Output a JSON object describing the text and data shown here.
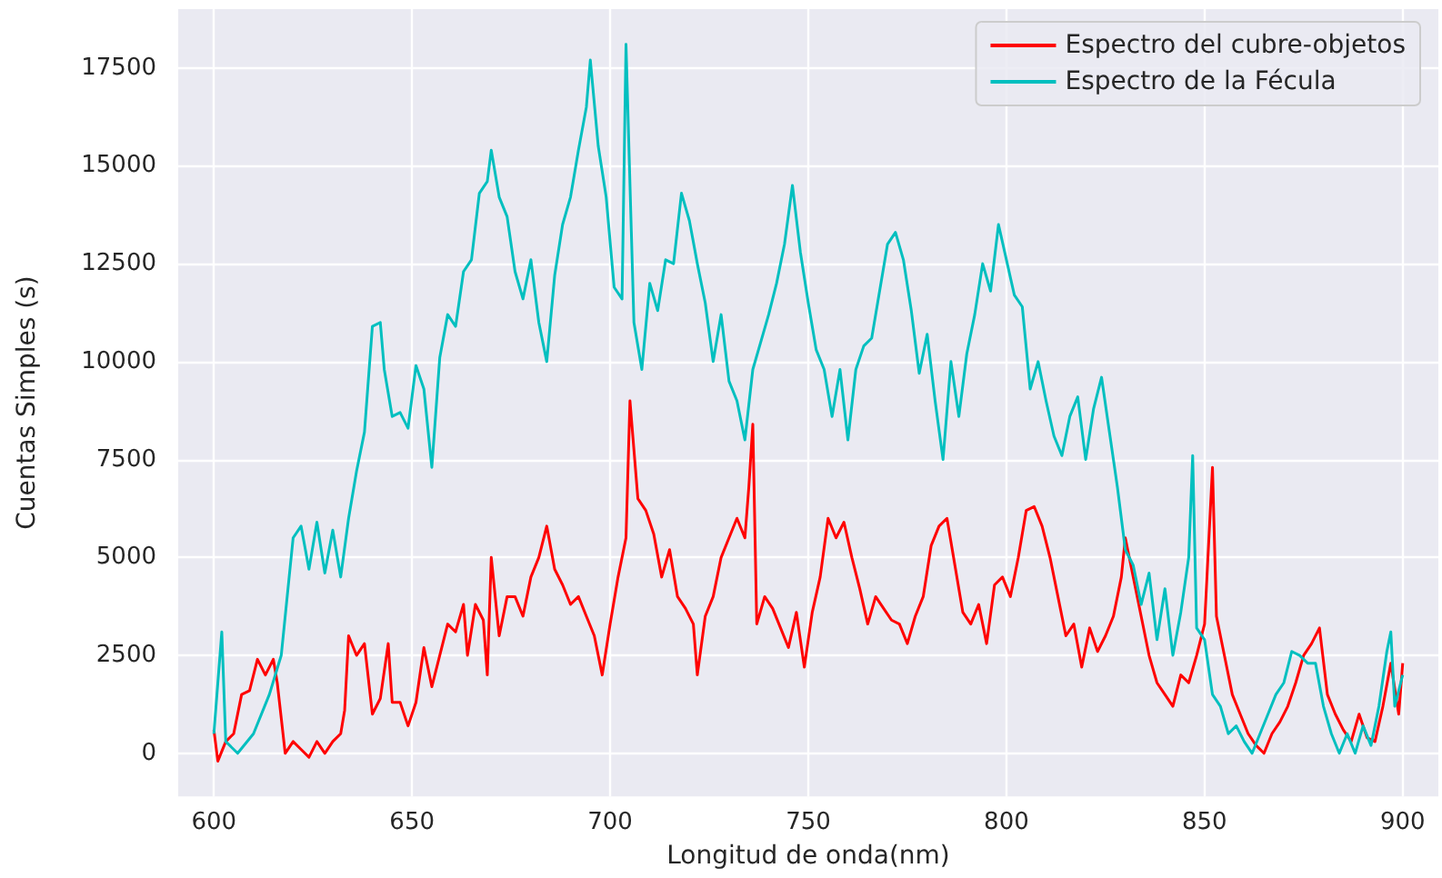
{
  "chart_data": {
    "type": "line",
    "xlabel": "Longitud de onda(nm)",
    "ylabel": "Cuentas Simples (s)",
    "xlim": [
      591,
      909
    ],
    "ylim": [
      -1100,
      19000
    ],
    "xticks": [
      600,
      650,
      700,
      750,
      800,
      850,
      900
    ],
    "yticks": [
      0,
      2500,
      5000,
      7500,
      10000,
      12500,
      15000,
      17500
    ],
    "grid": true,
    "legend": "top right",
    "marker": "none",
    "line_style": "solid",
    "series": [
      {
        "name": "Espectro del cubre-objetos",
        "color": "#ff0000",
        "x": [
          600,
          601,
          603,
          605,
          607,
          609,
          611,
          613,
          615,
          616,
          618,
          620,
          622,
          624,
          626,
          628,
          630,
          632,
          633,
          634,
          636,
          638,
          640,
          642,
          644,
          645,
          647,
          649,
          651,
          653,
          655,
          657,
          659,
          661,
          663,
          664,
          666,
          668,
          669,
          670,
          672,
          674,
          676,
          678,
          680,
          682,
          684,
          686,
          688,
          690,
          692,
          694,
          696,
          698,
          700,
          702,
          704,
          705,
          707,
          709,
          711,
          713,
          715,
          717,
          719,
          721,
          722,
          724,
          726,
          728,
          730,
          732,
          734,
          735,
          736,
          737,
          739,
          741,
          743,
          745,
          747,
          749,
          751,
          753,
          755,
          757,
          759,
          761,
          763,
          765,
          767,
          769,
          771,
          773,
          775,
          777,
          779,
          781,
          783,
          785,
          787,
          789,
          791,
          793,
          795,
          797,
          799,
          801,
          803,
          805,
          807,
          809,
          811,
          813,
          815,
          817,
          819,
          821,
          823,
          825,
          827,
          829,
          830,
          832,
          834,
          836,
          838,
          840,
          842,
          844,
          846,
          848,
          850,
          852,
          853,
          855,
          857,
          859,
          861,
          863,
          865,
          867,
          869,
          871,
          873,
          875,
          877,
          879,
          881,
          883,
          885,
          887,
          889,
          891,
          893,
          895,
          897,
          899,
          900
        ],
        "values": [
          600,
          -200,
          300,
          500,
          1500,
          1600,
          2400,
          2000,
          2400,
          1800,
          0,
          300,
          100,
          -100,
          300,
          0,
          300,
          500,
          1100,
          3000,
          2500,
          2800,
          1000,
          1400,
          2800,
          1300,
          1300,
          700,
          1300,
          2700,
          1700,
          2500,
          3300,
          3100,
          3800,
          2500,
          3800,
          3400,
          2000,
          5000,
          3000,
          4000,
          4000,
          3500,
          4500,
          5000,
          5800,
          4700,
          4300,
          3800,
          4000,
          3500,
          3000,
          2000,
          3300,
          4500,
          5500,
          9000,
          6500,
          6200,
          5600,
          4500,
          5200,
          4000,
          3700,
          3300,
          2000,
          3500,
          4000,
          5000,
          5500,
          6000,
          5500,
          6800,
          8400,
          3300,
          4000,
          3700,
          3200,
          2700,
          3600,
          2200,
          3600,
          4500,
          6000,
          5500,
          5900,
          5000,
          4200,
          3300,
          4000,
          3700,
          3400,
          3300,
          2800,
          3500,
          4000,
          5300,
          5800,
          6000,
          4800,
          3600,
          3300,
          3800,
          2800,
          4300,
          4500,
          4000,
          5000,
          6200,
          6300,
          5800,
          5000,
          4000,
          3000,
          3300,
          2200,
          3200,
          2600,
          3000,
          3500,
          4500,
          5500,
          4500,
          3500,
          2500,
          1800,
          1500,
          1200,
          2000,
          1800,
          2500,
          3300,
          7300,
          3500,
          2500,
          1500,
          1000,
          500,
          200,
          0,
          500,
          800,
          1200,
          1800,
          2500,
          2800,
          3200,
          1500,
          1000,
          600,
          300,
          1000,
          400,
          300,
          1200,
          2300,
          1000,
          2300
        ]
      },
      {
        "name": "Espectro de la Fécula",
        "color": "#00bfbf",
        "x": [
          600,
          602,
          603,
          606,
          610,
          614,
          617,
          619,
          620,
          622,
          624,
          626,
          628,
          630,
          632,
          634,
          636,
          638,
          640,
          642,
          643,
          645,
          647,
          649,
          651,
          653,
          655,
          657,
          659,
          661,
          663,
          665,
          667,
          669,
          670,
          672,
          674,
          676,
          678,
          680,
          682,
          684,
          686,
          688,
          690,
          692,
          694,
          695,
          697,
          699,
          701,
          703,
          704,
          706,
          708,
          710,
          712,
          714,
          716,
          718,
          720,
          722,
          724,
          726,
          728,
          730,
          732,
          734,
          736,
          738,
          740,
          742,
          744,
          746,
          748,
          750,
          752,
          754,
          756,
          758,
          760,
          762,
          764,
          766,
          768,
          770,
          772,
          774,
          776,
          778,
          780,
          782,
          784,
          786,
          788,
          790,
          792,
          794,
          796,
          798,
          800,
          802,
          804,
          806,
          808,
          810,
          812,
          814,
          816,
          818,
          820,
          822,
          824,
          826,
          828,
          830,
          832,
          834,
          836,
          838,
          840,
          842,
          844,
          846,
          847,
          848,
          850,
          852,
          854,
          856,
          858,
          860,
          862,
          864,
          866,
          868,
          870,
          872,
          874,
          876,
          878,
          880,
          882,
          884,
          886,
          888,
          890,
          892,
          894,
          896,
          897,
          898,
          900
        ],
        "values": [
          500,
          3100,
          300,
          0,
          500,
          1500,
          2500,
          4500,
          5500,
          5800,
          4700,
          5900,
          4600,
          5700,
          4500,
          6000,
          7200,
          8200,
          10900,
          11000,
          9800,
          8600,
          8700,
          8300,
          9900,
          9300,
          7300,
          10100,
          11200,
          10900,
          12300,
          12600,
          14300,
          14600,
          15400,
          14200,
          13700,
          12300,
          11600,
          12600,
          11000,
          10000,
          12200,
          13500,
          14200,
          15400,
          16500,
          17700,
          15500,
          14200,
          11900,
          11600,
          18100,
          11000,
          9800,
          12000,
          11300,
          12600,
          12500,
          14300,
          13600,
          12500,
          11500,
          10000,
          11200,
          9500,
          9000,
          8000,
          9800,
          10500,
          11200,
          12000,
          13000,
          14500,
          12800,
          11500,
          10300,
          9800,
          8600,
          9800,
          8000,
          9800,
          10400,
          10600,
          11800,
          13000,
          13300,
          12600,
          11300,
          9700,
          10700,
          9000,
          7500,
          10000,
          8600,
          10200,
          11200,
          12500,
          11800,
          13500,
          12600,
          11700,
          11400,
          9300,
          10000,
          9000,
          8100,
          7600,
          8600,
          9100,
          7500,
          8800,
          9600,
          8200,
          6800,
          5200,
          4800,
          3800,
          4600,
          2900,
          4200,
          2500,
          3600,
          5000,
          7600,
          3200,
          2900,
          1500,
          1200,
          500,
          700,
          300,
          0,
          500,
          1000,
          1500,
          1800,
          2600,
          2500,
          2300,
          2300,
          1200,
          500,
          0,
          500,
          0,
          700,
          200,
          1200,
          2600,
          3100,
          1200,
          2000
        ]
      }
    ]
  }
}
